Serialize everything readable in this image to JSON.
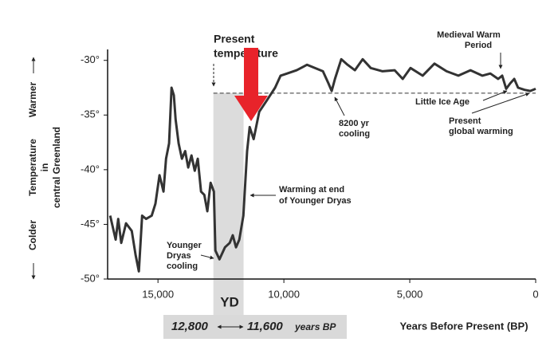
{
  "chart_data": {
    "type": "line",
    "x": [
      16900,
      16680,
      16580,
      16460,
      16270,
      16040,
      15890,
      15760,
      15630,
      15470,
      15250,
      15100,
      14940,
      14780,
      14680,
      14560,
      14460,
      14370,
      14300,
      14180,
      14050,
      13920,
      13800,
      13670,
      13540,
      13420,
      13290,
      13160,
      13040,
      12910,
      12780,
      12720,
      12560,
      12340,
      12150,
      12030,
      11900,
      11770,
      11610,
      11460,
      11360,
      11200,
      10980,
      10660,
      10350,
      10130,
      9870,
      9490,
      9080,
      8770,
      8450,
      8230,
      8100,
      7970,
      7720,
      7470,
      7180,
      6870,
      6550,
      6080,
      5600,
      5280,
      4970,
      4490,
      4020,
      3540,
      3070,
      2590,
      2120,
      1800,
      1490,
      1330,
      1170,
      1010,
      850,
      700,
      440,
      220,
      0
    ],
    "values": [
      -44.2,
      -46.4,
      -44.5,
      -46.7,
      -44.9,
      -45.6,
      -47.8,
      -49.3,
      -44.2,
      -44.5,
      -44.2,
      -43.1,
      -40.5,
      -42,
      -39,
      -37.6,
      -32.5,
      -33.2,
      -35.4,
      -37.6,
      -39,
      -38.3,
      -39.8,
      -38.7,
      -40.1,
      -39,
      -42,
      -42.3,
      -43.8,
      -41.2,
      -42,
      -47.4,
      -48.2,
      -47.1,
      -46.7,
      -46,
      -47.1,
      -46.4,
      -44.2,
      -38.3,
      -36.1,
      -37.2,
      -34.7,
      -33.6,
      -32.5,
      -31.4,
      -31.2,
      -30.9,
      -30.4,
      -30.7,
      -31,
      -32.1,
      -32.8,
      -31.7,
      -29.9,
      -30.4,
      -30.9,
      -29.9,
      -30.7,
      -31,
      -30.9,
      -31.7,
      -30.7,
      -31.4,
      -30.3,
      -31,
      -31.4,
      -30.9,
      -31.4,
      -31.2,
      -31.7,
      -31.4,
      -32.6,
      -32.1,
      -31.7,
      -32.5,
      -32.7,
      -32.8,
      -32.6
    ],
    "color": "#333333",
    "xlim": [
      17000,
      0
    ],
    "ylim": [
      -50,
      -29
    ],
    "xticks": [
      {
        "value": 15000,
        "label": "15,000"
      },
      {
        "value": 10000,
        "label": "10,000"
      },
      {
        "value": 5000,
        "label": "5,000"
      },
      0
    ],
    "yticks": [
      {
        "value": -30,
        "label": "-30°"
      },
      {
        "value": -35,
        "label": "-35°"
      },
      {
        "value": -40,
        "label": "-40°"
      },
      {
        "value": -45,
        "label": "-45°"
      },
      {
        "value": -50,
        "label": "-50°"
      }
    ],
    "x_label": "Years Before Present (BP)",
    "y_label": [
      "Temperature",
      "in",
      "central Greenland"
    ],
    "y_warm": "Warmer",
    "y_cold": "Colder",
    "reference_line": {
      "value": -33,
      "label": [
        "Present",
        "temperature"
      ]
    },
    "band": {
      "from": {
        "value": 12800,
        "label": "12,800"
      },
      "to": {
        "value": 11600,
        "label": "11,600"
      },
      "label": "YD",
      "unit": "years BP"
    },
    "annotations": {
      "medieval": [
        "Medieval Warm",
        "Period"
      ],
      "little_ice_age": "Little Ice Age",
      "cooling_8200": [
        "8200 yr",
        "cooling"
      ],
      "present_warming": [
        "Present",
        "global warming"
      ],
      "yd_warming": [
        "Warming at end",
        "of Younger Dryas"
      ],
      "yd_cooling": [
        "Younger",
        "Dryas",
        "cooling"
      ]
    }
  }
}
